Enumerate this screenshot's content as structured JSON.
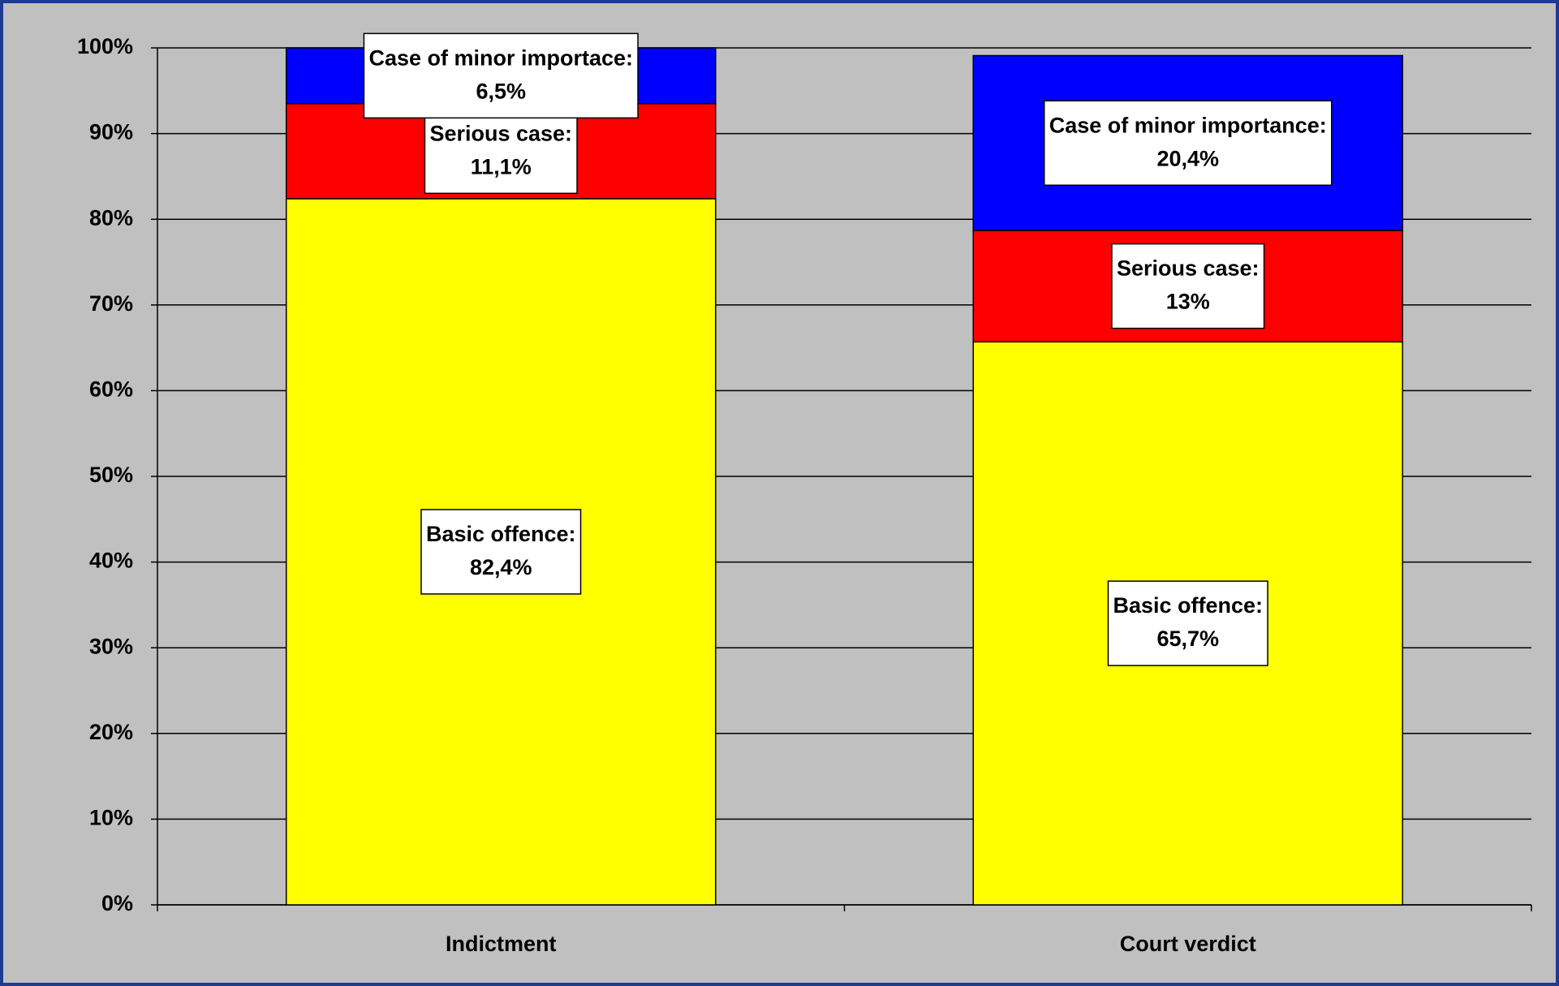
{
  "chart_data": {
    "type": "stacked-bar",
    "categories": [
      "Indictment",
      "Court verdict"
    ],
    "series": [
      {
        "color": "#ffff00",
        "values": [
          82.4,
          65.7
        ],
        "value_labels": [
          "82,4%",
          "65,7%"
        ],
        "label_titles": [
          "Basic offence:",
          "Basic offence:"
        ]
      },
      {
        "color": "#ff0000",
        "values": [
          11.1,
          13
        ],
        "value_labels": [
          "11,1%",
          "13%"
        ],
        "label_titles": [
          "Serious case:",
          "Serious case:"
        ]
      },
      {
        "color": "#0000ff",
        "values": [
          6.5,
          20.4
        ],
        "value_labels": [
          "6,5%",
          "20,4%"
        ],
        "label_titles": [
          "Case of minor importace:",
          "Case of minor importance:"
        ]
      }
    ],
    "ylim": [
      0,
      100
    ],
    "yticks": [
      {
        "value": 0,
        "label": "0%"
      },
      {
        "value": 10,
        "label": "10%"
      },
      {
        "value": 20,
        "label": "20%"
      },
      {
        "value": 30,
        "label": "30%"
      },
      {
        "value": 40,
        "label": "40%"
      },
      {
        "value": 50,
        "label": "50%"
      },
      {
        "value": 60,
        "label": "60%"
      },
      {
        "value": 70,
        "label": "70%"
      },
      {
        "value": 80,
        "label": "80%"
      },
      {
        "value": 90,
        "label": "90%"
      },
      {
        "value": 100,
        "label": "100%"
      }
    ],
    "grid": true
  }
}
